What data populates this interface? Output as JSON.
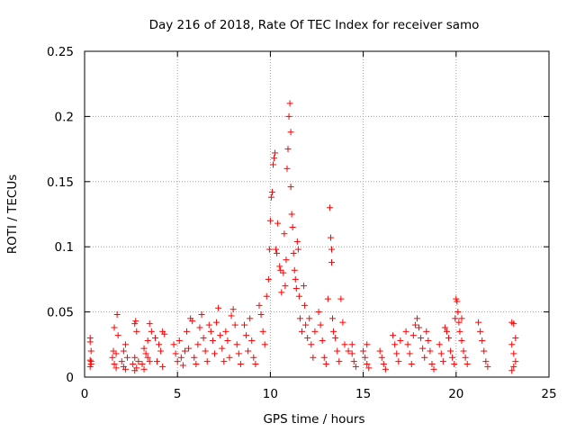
{
  "chart_data": {
    "type": "scatter",
    "title": "Day 216 of 2018, Rate Of TEC Index for receiver samo",
    "xlabel": "GPS time / hours",
    "ylabel": "ROTI / TECUs",
    "xlim": [
      0,
      25
    ],
    "ylim": [
      0,
      0.25
    ],
    "xticks": [
      0,
      5,
      10,
      15,
      20,
      25
    ],
    "yticks": [
      0,
      0.05,
      0.1,
      0.15,
      0.2,
      0.25
    ],
    "xtick_labels": [
      "0",
      "5",
      "10",
      "15",
      "20",
      "25"
    ],
    "ytick_labels": [
      "0",
      "0.05",
      "0.1",
      "0.15",
      "0.2",
      "0.25"
    ],
    "grid": true,
    "marker": "+",
    "color": "#ff0000",
    "series": [
      {
        "name": "ROTI",
        "points": [
          [
            0.3,
            0.03
          ],
          [
            0.3,
            0.027
          ],
          [
            0.35,
            0.02
          ],
          [
            0.3,
            0.013
          ],
          [
            0.35,
            0.01
          ],
          [
            0.3,
            0.008
          ],
          [
            0.35,
            0.012
          ],
          [
            1.6,
            0.038
          ],
          [
            1.75,
            0.048
          ],
          [
            1.8,
            0.032
          ],
          [
            1.5,
            0.015
          ],
          [
            1.6,
            0.01
          ],
          [
            1.7,
            0.007
          ],
          [
            1.55,
            0.02
          ],
          [
            1.7,
            0.018
          ],
          [
            2.0,
            0.012
          ],
          [
            2.1,
            0.02
          ],
          [
            2.2,
            0.025
          ],
          [
            2.1,
            0.008
          ],
          [
            2.3,
            0.015
          ],
          [
            2.2,
            0.006
          ],
          [
            2.7,
            0.041
          ],
          [
            2.75,
            0.043
          ],
          [
            2.8,
            0.035
          ],
          [
            2.6,
            0.01
          ],
          [
            2.7,
            0.015
          ],
          [
            2.8,
            0.007
          ],
          [
            2.9,
            0.012
          ],
          [
            2.7,
            0.005
          ],
          [
            3.2,
            0.022
          ],
          [
            3.3,
            0.018
          ],
          [
            3.4,
            0.015
          ],
          [
            3.1,
            0.01
          ],
          [
            3.5,
            0.041
          ],
          [
            3.6,
            0.035
          ],
          [
            3.4,
            0.028
          ],
          [
            3.2,
            0.006
          ],
          [
            3.5,
            0.012
          ],
          [
            3.8,
            0.03
          ],
          [
            4.0,
            0.025
          ],
          [
            4.1,
            0.02
          ],
          [
            4.2,
            0.035
          ],
          [
            4.3,
            0.033
          ],
          [
            3.9,
            0.012
          ],
          [
            4.2,
            0.008
          ],
          [
            4.8,
            0.025
          ],
          [
            4.9,
            0.018
          ],
          [
            5.0,
            0.012
          ],
          [
            5.1,
            0.028
          ],
          [
            5.2,
            0.015
          ],
          [
            5.3,
            0.009
          ],
          [
            5.4,
            0.02
          ],
          [
            5.5,
            0.035
          ],
          [
            5.6,
            0.022
          ],
          [
            5.7,
            0.045
          ],
          [
            5.8,
            0.043
          ],
          [
            5.9,
            0.015
          ],
          [
            6.0,
            0.01
          ],
          [
            6.1,
            0.025
          ],
          [
            6.2,
            0.038
          ],
          [
            6.3,
            0.048
          ],
          [
            6.4,
            0.03
          ],
          [
            6.5,
            0.02
          ],
          [
            6.6,
            0.012
          ],
          [
            6.7,
            0.04
          ],
          [
            6.8,
            0.035
          ],
          [
            6.9,
            0.028
          ],
          [
            7.0,
            0.018
          ],
          [
            7.1,
            0.042
          ],
          [
            7.2,
            0.053
          ],
          [
            7.3,
            0.032
          ],
          [
            7.4,
            0.022
          ],
          [
            7.5,
            0.012
          ],
          [
            7.6,
            0.035
          ],
          [
            7.7,
            0.028
          ],
          [
            7.8,
            0.015
          ],
          [
            7.9,
            0.047
          ],
          [
            8.0,
            0.052
          ],
          [
            8.1,
            0.04
          ],
          [
            8.2,
            0.025
          ],
          [
            8.3,
            0.018
          ],
          [
            8.4,
            0.01
          ],
          [
            8.6,
            0.04
          ],
          [
            8.7,
            0.032
          ],
          [
            8.8,
            0.02
          ],
          [
            8.9,
            0.045
          ],
          [
            9.0,
            0.028
          ],
          [
            9.1,
            0.015
          ],
          [
            9.2,
            0.01
          ],
          [
            9.4,
            0.055
          ],
          [
            9.5,
            0.048
          ],
          [
            9.6,
            0.035
          ],
          [
            9.7,
            0.025
          ],
          [
            9.8,
            0.062
          ],
          [
            9.9,
            0.075
          ],
          [
            9.95,
            0.098
          ],
          [
            10.0,
            0.12
          ],
          [
            10.05,
            0.138
          ],
          [
            10.1,
            0.142
          ],
          [
            10.15,
            0.163
          ],
          [
            10.2,
            0.168
          ],
          [
            10.25,
            0.172
          ],
          [
            10.3,
            0.098
          ],
          [
            10.35,
            0.095
          ],
          [
            10.4,
            0.118
          ],
          [
            10.5,
            0.085
          ],
          [
            10.55,
            0.082
          ],
          [
            10.6,
            0.065
          ],
          [
            10.7,
            0.08
          ],
          [
            10.75,
            0.11
          ],
          [
            10.8,
            0.07
          ],
          [
            10.85,
            0.09
          ],
          [
            10.9,
            0.16
          ],
          [
            10.95,
            0.175
          ],
          [
            11.0,
            0.2
          ],
          [
            11.05,
            0.21
          ],
          [
            11.1,
            0.188
          ],
          [
            11.1,
            0.146
          ],
          [
            11.15,
            0.125
          ],
          [
            11.2,
            0.115
          ],
          [
            11.25,
            0.095
          ],
          [
            11.3,
            0.082
          ],
          [
            11.35,
            0.075
          ],
          [
            11.4,
            0.068
          ],
          [
            11.45,
            0.104
          ],
          [
            11.5,
            0.098
          ],
          [
            11.55,
            0.062
          ],
          [
            11.6,
            0.045
          ],
          [
            11.7,
            0.035
          ],
          [
            11.8,
            0.07
          ],
          [
            11.85,
            0.055
          ],
          [
            11.9,
            0.04
          ],
          [
            12.0,
            0.03
          ],
          [
            12.1,
            0.045
          ],
          [
            12.2,
            0.025
          ],
          [
            12.3,
            0.015
          ],
          [
            12.4,
            0.035
          ],
          [
            12.6,
            0.05
          ],
          [
            12.7,
            0.04
          ],
          [
            12.8,
            0.028
          ],
          [
            12.9,
            0.015
          ],
          [
            13.0,
            0.01
          ],
          [
            13.1,
            0.06
          ],
          [
            13.2,
            0.13
          ],
          [
            13.25,
            0.107
          ],
          [
            13.3,
            0.098
          ],
          [
            13.3,
            0.088
          ],
          [
            13.35,
            0.045
          ],
          [
            13.4,
            0.035
          ],
          [
            13.5,
            0.03
          ],
          [
            13.6,
            0.02
          ],
          [
            13.7,
            0.012
          ],
          [
            13.8,
            0.06
          ],
          [
            13.9,
            0.042
          ],
          [
            14.0,
            0.025
          ],
          [
            14.2,
            0.02
          ],
          [
            14.4,
            0.018
          ],
          [
            14.5,
            0.012
          ],
          [
            14.6,
            0.008
          ],
          [
            14.4,
            0.025
          ],
          [
            15.0,
            0.02
          ],
          [
            15.1,
            0.015
          ],
          [
            15.2,
            0.01
          ],
          [
            15.3,
            0.007
          ],
          [
            15.2,
            0.025
          ],
          [
            15.9,
            0.02
          ],
          [
            16.0,
            0.015
          ],
          [
            16.1,
            0.01
          ],
          [
            16.2,
            0.006
          ],
          [
            16.6,
            0.032
          ],
          [
            16.7,
            0.025
          ],
          [
            16.8,
            0.018
          ],
          [
            16.9,
            0.012
          ],
          [
            17.0,
            0.028
          ],
          [
            17.3,
            0.035
          ],
          [
            17.4,
            0.025
          ],
          [
            17.5,
            0.018
          ],
          [
            17.6,
            0.01
          ],
          [
            17.7,
            0.032
          ],
          [
            17.8,
            0.04
          ],
          [
            17.9,
            0.045
          ],
          [
            18.0,
            0.038
          ],
          [
            18.1,
            0.03
          ],
          [
            18.2,
            0.022
          ],
          [
            18.3,
            0.015
          ],
          [
            18.4,
            0.035
          ],
          [
            18.5,
            0.028
          ],
          [
            18.6,
            0.02
          ],
          [
            18.7,
            0.01
          ],
          [
            18.8,
            0.006
          ],
          [
            19.1,
            0.025
          ],
          [
            19.2,
            0.018
          ],
          [
            19.3,
            0.012
          ],
          [
            19.4,
            0.038
          ],
          [
            19.5,
            0.035
          ],
          [
            19.6,
            0.03
          ],
          [
            19.7,
            0.02
          ],
          [
            19.8,
            0.015
          ],
          [
            19.9,
            0.01
          ],
          [
            19.95,
            0.045
          ],
          [
            20.0,
            0.06
          ],
          [
            20.05,
            0.058
          ],
          [
            20.1,
            0.05
          ],
          [
            20.15,
            0.042
          ],
          [
            20.2,
            0.035
          ],
          [
            20.3,
            0.028
          ],
          [
            20.4,
            0.02
          ],
          [
            20.5,
            0.015
          ],
          [
            20.6,
            0.01
          ],
          [
            20.3,
            0.045
          ],
          [
            21.2,
            0.042
          ],
          [
            21.3,
            0.035
          ],
          [
            21.4,
            0.028
          ],
          [
            21.5,
            0.02
          ],
          [
            21.6,
            0.012
          ],
          [
            21.7,
            0.008
          ],
          [
            23.0,
            0.042
          ],
          [
            23.1,
            0.041
          ],
          [
            23.2,
            0.03
          ],
          [
            23.0,
            0.025
          ],
          [
            23.1,
            0.018
          ],
          [
            23.2,
            0.012
          ],
          [
            23.1,
            0.008
          ],
          [
            23.0,
            0.005
          ]
        ]
      }
    ]
  }
}
